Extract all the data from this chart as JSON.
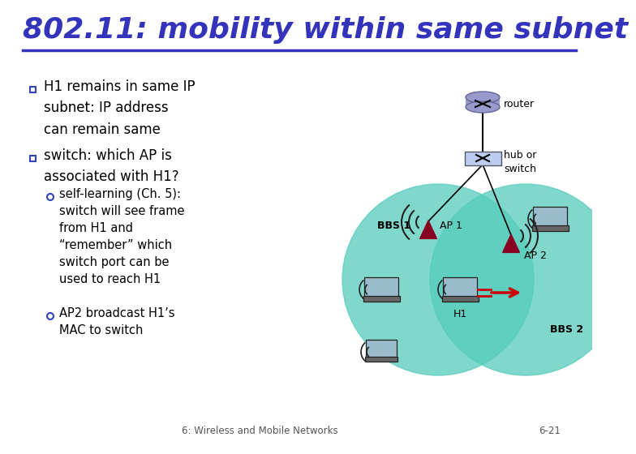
{
  "title": "802.11: mobility within same subnet",
  "title_color": "#3333bb",
  "bg_color": "#ffffff",
  "text_color": "#000000",
  "bullet_color": "#3344bb",
  "footer": "6: Wireless and Mobile Networks",
  "footer_page": "6-21",
  "footer_color": "#555555",
  "bbs_color": "#55ccbb",
  "bbs_alpha": 0.75,
  "arrow_color": "#cc0000",
  "ap_color": "#880022",
  "router_color": "#9999cc",
  "switch_color": "#bbccee"
}
